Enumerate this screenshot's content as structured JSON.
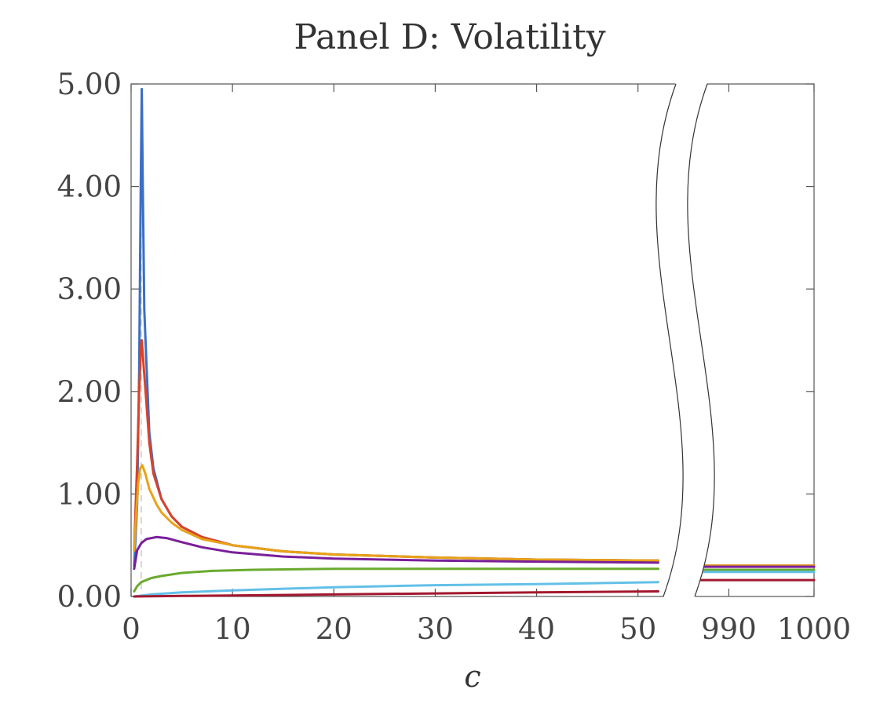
{
  "chart_data": {
    "type": "line",
    "title": "Panel D: Volatility",
    "xlabel": "c",
    "ylabel": "",
    "ylim": [
      0,
      5
    ],
    "y_ticks": [
      0,
      1,
      2,
      3,
      4,
      5
    ],
    "y_tick_labels": [
      "0.00",
      "1.00",
      "2.00",
      "3.00",
      "4.00",
      "5.00"
    ],
    "x_segments": [
      {
        "xlim": [
          0,
          52.5
        ],
        "ticks": [
          0,
          10,
          20,
          30,
          40,
          50
        ],
        "tick_labels": [
          "0",
          "10",
          "20",
          "30",
          "40",
          "50"
        ]
      },
      {
        "xlim": [
          986,
          1000
        ],
        "ticks": [
          990,
          1000
        ],
        "tick_labels": [
          "990",
          "1000"
        ]
      }
    ],
    "axis_break": true,
    "grid": false,
    "vertical_reference_line_x": 1,
    "series_colors": [
      "#3b6fc4",
      "#d9432a",
      "#e8a317",
      "#7a1f9a",
      "#6aaa2e",
      "#63c0e8",
      "#a3182f"
    ],
    "series": [
      {
        "values": [
          [
            0.3,
            0.3
          ],
          [
            0.6,
            0.9
          ],
          [
            0.8,
            2.2
          ],
          [
            0.95,
            4.0
          ],
          [
            1.05,
            4.95
          ],
          [
            1.15,
            4.0
          ],
          [
            1.3,
            2.8
          ],
          [
            1.5,
            2.3
          ],
          [
            1.8,
            1.6
          ],
          [
            2.2,
            1.25
          ],
          [
            3,
            0.95
          ],
          [
            4,
            0.78
          ],
          [
            5,
            0.68
          ],
          [
            7,
            0.58
          ],
          [
            10,
            0.5
          ],
          [
            15,
            0.44
          ],
          [
            20,
            0.41
          ],
          [
            30,
            0.38
          ],
          [
            40,
            0.36
          ],
          [
            52,
            0.35
          ],
          [
            986,
            0.3
          ],
          [
            1000,
            0.3
          ]
        ]
      },
      {
        "values": [
          [
            0.3,
            0.45
          ],
          [
            0.6,
            1.3
          ],
          [
            0.8,
            2.0
          ],
          [
            0.95,
            2.4
          ],
          [
            1.05,
            2.5
          ],
          [
            1.2,
            2.3
          ],
          [
            1.5,
            1.9
          ],
          [
            1.8,
            1.5
          ],
          [
            2.2,
            1.2
          ],
          [
            3,
            0.95
          ],
          [
            4,
            0.78
          ],
          [
            5,
            0.68
          ],
          [
            7,
            0.58
          ],
          [
            10,
            0.5
          ],
          [
            15,
            0.44
          ],
          [
            20,
            0.41
          ],
          [
            30,
            0.38
          ],
          [
            40,
            0.36
          ],
          [
            52,
            0.35
          ],
          [
            986,
            0.3
          ],
          [
            1000,
            0.3
          ]
        ]
      },
      {
        "values": [
          [
            0.3,
            0.45
          ],
          [
            0.5,
            0.8
          ],
          [
            0.7,
            1.1
          ],
          [
            0.9,
            1.25
          ],
          [
            1.1,
            1.28
          ],
          [
            1.4,
            1.2
          ],
          [
            1.8,
            1.05
          ],
          [
            2.5,
            0.9
          ],
          [
            3,
            0.82
          ],
          [
            4,
            0.72
          ],
          [
            5,
            0.65
          ],
          [
            7,
            0.56
          ],
          [
            10,
            0.5
          ],
          [
            15,
            0.44
          ],
          [
            20,
            0.41
          ],
          [
            30,
            0.38
          ],
          [
            40,
            0.36
          ],
          [
            52,
            0.35
          ],
          [
            986,
            0.3
          ],
          [
            1000,
            0.3
          ]
        ]
      },
      {
        "values": [
          [
            0.3,
            0.27
          ],
          [
            0.6,
            0.45
          ],
          [
            1,
            0.52
          ],
          [
            1.5,
            0.56
          ],
          [
            2.5,
            0.58
          ],
          [
            3.5,
            0.57
          ],
          [
            5,
            0.53
          ],
          [
            7,
            0.48
          ],
          [
            10,
            0.43
          ],
          [
            15,
            0.39
          ],
          [
            20,
            0.37
          ],
          [
            30,
            0.35
          ],
          [
            40,
            0.34
          ],
          [
            52,
            0.33
          ],
          [
            986,
            0.29
          ],
          [
            1000,
            0.29
          ]
        ]
      },
      {
        "values": [
          [
            0.3,
            0.05
          ],
          [
            0.6,
            0.1
          ],
          [
            1,
            0.14
          ],
          [
            2,
            0.18
          ],
          [
            3,
            0.2
          ],
          [
            5,
            0.23
          ],
          [
            8,
            0.25
          ],
          [
            12,
            0.26
          ],
          [
            20,
            0.27
          ],
          [
            30,
            0.27
          ],
          [
            40,
            0.27
          ],
          [
            52,
            0.27
          ],
          [
            986,
            0.26
          ],
          [
            1000,
            0.26
          ]
        ]
      },
      {
        "values": [
          [
            0.3,
            0.0
          ],
          [
            2,
            0.02
          ],
          [
            5,
            0.04
          ],
          [
            10,
            0.06
          ],
          [
            20,
            0.09
          ],
          [
            30,
            0.11
          ],
          [
            40,
            0.12
          ],
          [
            52,
            0.14
          ],
          [
            986,
            0.24
          ],
          [
            1000,
            0.24
          ]
        ]
      },
      {
        "values": [
          [
            0.3,
            0.0
          ],
          [
            5,
            0.005
          ],
          [
            10,
            0.01
          ],
          [
            20,
            0.02
          ],
          [
            30,
            0.03
          ],
          [
            40,
            0.04
          ],
          [
            52,
            0.05
          ],
          [
            986,
            0.16
          ],
          [
            1000,
            0.16
          ]
        ]
      }
    ]
  }
}
